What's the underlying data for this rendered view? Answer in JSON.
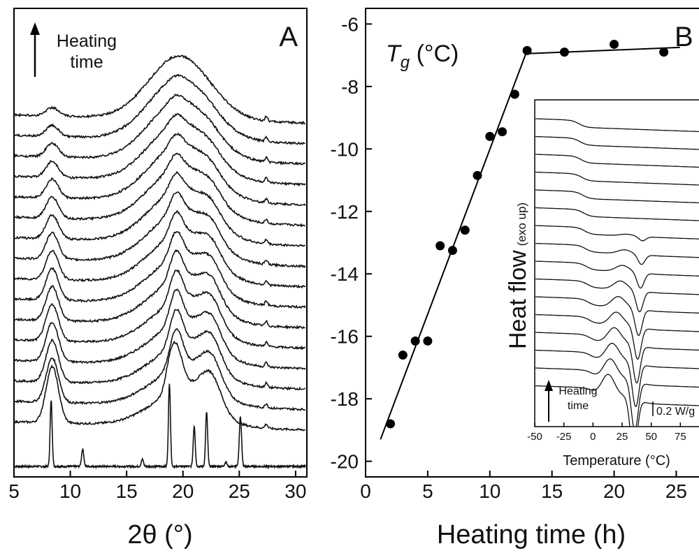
{
  "chart_data": [
    {
      "panel": "A",
      "type": "line",
      "xlabel": "2θ (°)",
      "xlim": [
        5,
        31
      ],
      "xticks": [
        5,
        10,
        15,
        20,
        25,
        30
      ],
      "annotation": "Heating time",
      "trace_count": 17,
      "peak_positions_deg": [
        8.3,
        11.1,
        16.4,
        18.8,
        21.0,
        22.1,
        25.1,
        27.4
      ],
      "amorphous_halo_center_deg": 19.8
    },
    {
      "panel": "B",
      "type": "scatter",
      "xlabel": "Heating time (h)",
      "ylabel": "Tg (°C)",
      "xlim": [
        0,
        27
      ],
      "ylim": [
        -20.5,
        -5.5
      ],
      "xticks": [
        0,
        5,
        10,
        15,
        20,
        25
      ],
      "yticks": [
        -6,
        -8,
        -10,
        -12,
        -14,
        -16,
        -18,
        -20
      ],
      "series": [
        {
          "x": [
            2,
            3,
            4,
            5,
            6,
            7,
            8,
            9,
            10,
            11,
            12,
            13,
            16,
            20,
            24
          ],
          "y": [
            -18.8,
            -16.6,
            -16.15,
            -16.15,
            -13.1,
            -13.25,
            -12.6,
            -10.85,
            -9.6,
            -9.45,
            -8.25,
            -6.85,
            -6.9,
            -6.65,
            -6.9
          ]
        }
      ],
      "fit_lines": [
        {
          "x": [
            1.2,
            12.9
          ],
          "y": [
            -19.3,
            -6.95
          ]
        },
        {
          "x": [
            12.9,
            25.3
          ],
          "y": [
            -6.95,
            -6.75
          ]
        }
      ],
      "inset": {
        "type": "line",
        "xlabel": "Temperature (°C)",
        "ylabel_main": "Heat flow",
        "ylabel_note": "(exo up)",
        "xticks": [
          -50,
          -25,
          0,
          25,
          50,
          75
        ],
        "xlim": [
          -50,
          100
        ],
        "annotation": "Heating time",
        "scale_label": "0.2 W/g",
        "trace_count": 16
      }
    }
  ]
}
